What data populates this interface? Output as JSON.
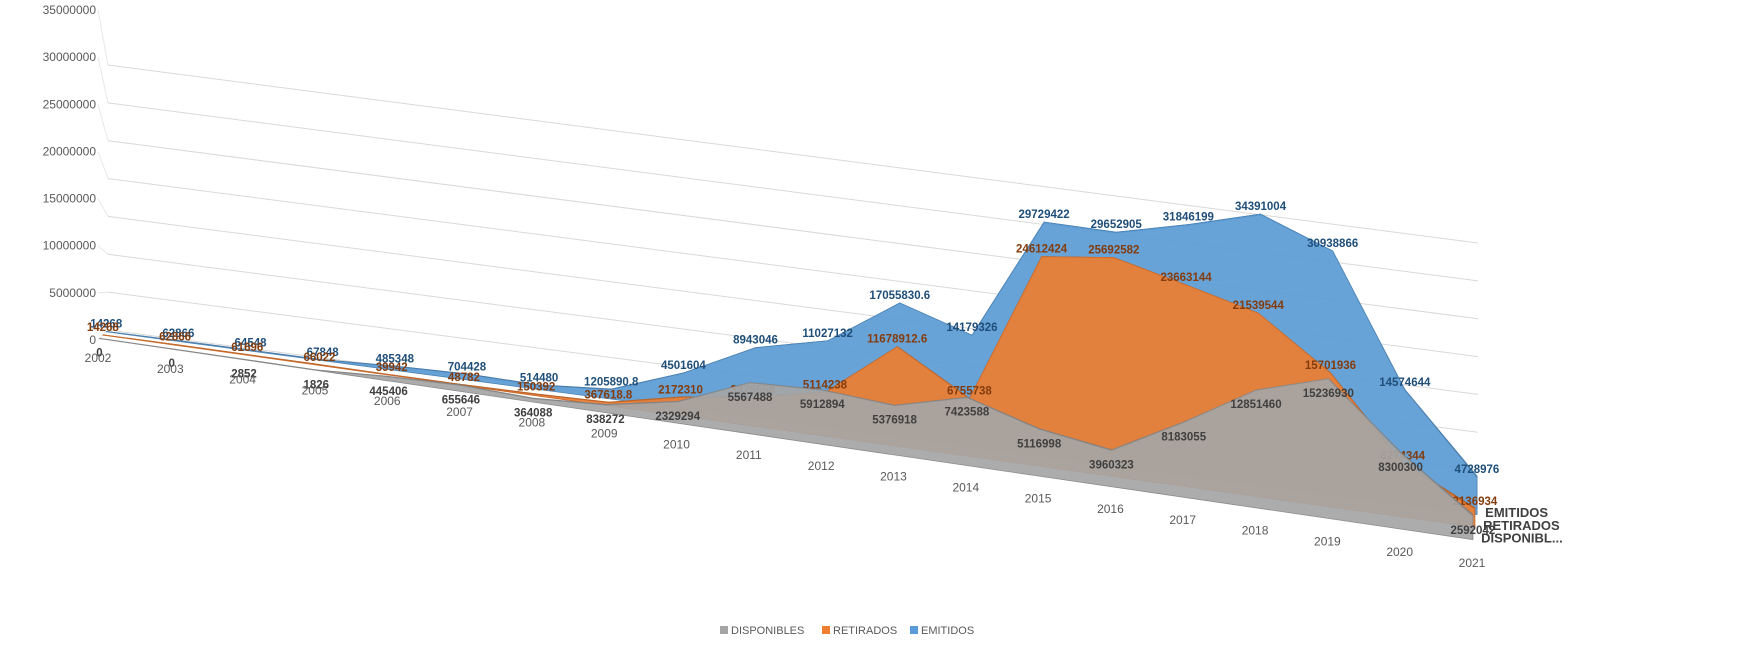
{
  "chart_data": {
    "type": "area",
    "style": "3d-stacked-depth",
    "categories": [
      "2002",
      "2003",
      "2004",
      "2005",
      "2006",
      "2007",
      "2008",
      "2009",
      "2010",
      "2011",
      "2012",
      "2013",
      "2014",
      "2015",
      "2016",
      "2017",
      "2018",
      "2019",
      "2020",
      "2021"
    ],
    "y_ticks": [
      "0",
      "5000000",
      "10000000",
      "15000000",
      "20000000",
      "25000000",
      "30000000",
      "35000000"
    ],
    "ylim": [
      0,
      35000000
    ],
    "grid": true,
    "legend_position": "bottom",
    "series": [
      {
        "name": "DISPONIBLES",
        "axis_label": "DISPONIBL...",
        "color": "#a5a5a5",
        "values": [
          0,
          0,
          2852,
          1826,
          445406,
          655646,
          364088,
          838272,
          2329294,
          5567488,
          5912894,
          5376918,
          7423588,
          5116998,
          3960323,
          8183055,
          12851460,
          15236930,
          8300300,
          2592042
        ],
        "labels": [
          "0",
          "0",
          "2852",
          "1826",
          "445406",
          "655646",
          "364088",
          "838272",
          "2329294",
          "5567488",
          "5912894",
          "5376918",
          "7423588",
          "5116998",
          "3960323",
          "8183055",
          "12851460",
          "15236930",
          "8300300",
          "2592042"
        ]
      },
      {
        "name": "RETIRADOS",
        "axis_label": "RETIRADOS",
        "color": "#ed7d31",
        "values": [
          14268,
          62866,
          61696,
          66022,
          39942,
          48782,
          150392,
          367618.8,
          2172310,
          3375558,
          5114238,
          11678912.6,
          6755738,
          24612424,
          25692582,
          23663144,
          21539544,
          15701936,
          6274344,
          2136934
        ],
        "labels": [
          "14268",
          "62866",
          "61696",
          "66022",
          "39942",
          "48782",
          "150392",
          "367618.8",
          "2172310",
          "3375558",
          "5114238",
          "11678912.6",
          "6755738",
          "24612424",
          "25692582",
          "23663144",
          "21539544",
          "15701936",
          "6274344",
          "2136934"
        ]
      },
      {
        "name": "EMITIDOS",
        "axis_label": "EMITIDOS",
        "color": "#5b9bd5",
        "values": [
          14268,
          62866,
          64548,
          67848,
          485348,
          704428,
          514480,
          1205890.8,
          4501604,
          8943046,
          11027132,
          17055830.6,
          14179326,
          29729422,
          29652905,
          31846199,
          34391004,
          30938866,
          14574644,
          4728976
        ],
        "labels": [
          "14268",
          "62866",
          "64548",
          "67848",
          "485348",
          "704428",
          "514480",
          "1205890.8",
          "4501604",
          "8943046",
          "11027132",
          "17055830.6",
          "14179326",
          "29729422",
          "29652905",
          "31846199",
          "34391004",
          "30938866",
          "14574644",
          "4728976"
        ]
      }
    ]
  }
}
